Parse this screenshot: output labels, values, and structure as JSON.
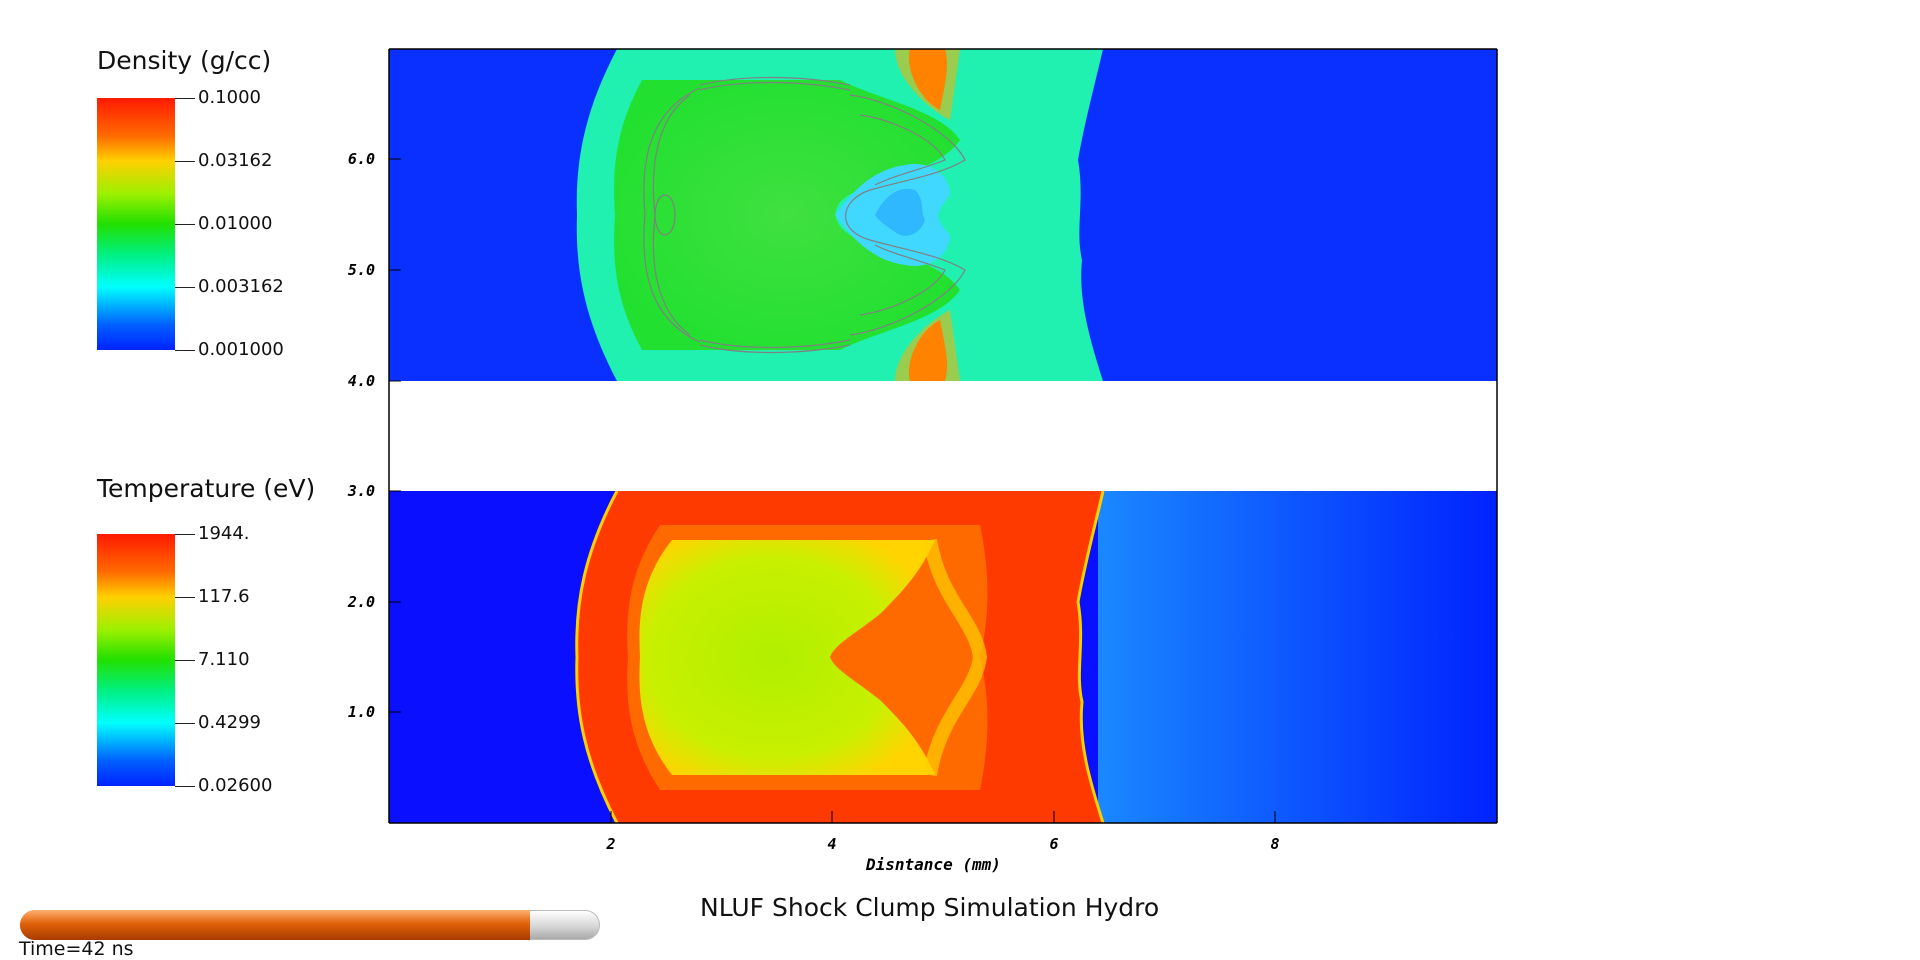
{
  "density_legend": {
    "title": "Density (g/cc)",
    "labels": [
      "0.1000",
      "0.03162",
      "0.01000",
      "0.003162",
      "0.001000"
    ]
  },
  "temperature_legend": {
    "title": "Temperature (eV)",
    "labels": [
      "1944.",
      "117.6",
      "7.110",
      "0.4299",
      "0.02600"
    ]
  },
  "y_ticks": [
    "6.0",
    "5.0",
    "4.0",
    "3.0",
    "2.0",
    "1.0"
  ],
  "x_ticks": [
    "2",
    "4",
    "6",
    "8"
  ],
  "x_label": "Disntance (mm)",
  "plot_title": "NLUF Shock Clump Simulation Hydro",
  "time_label": "Time=42 ns",
  "time_progress": 0.88
}
